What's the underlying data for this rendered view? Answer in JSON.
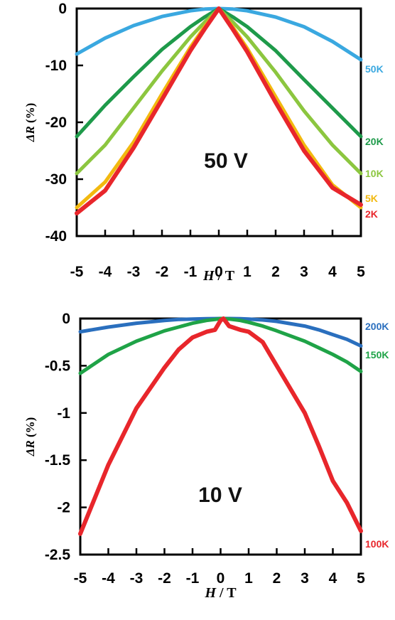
{
  "chart_data": [
    {
      "type": "line",
      "annotation": "50 V",
      "xlabel_italic": "H",
      "xlabel_rest": " / T",
      "ylabel_italic": "ΔR",
      "ylabel_rest": " (%)",
      "xlim": [
        -5,
        5
      ],
      "ylim": [
        -40,
        0
      ],
      "xticks": [
        "-5",
        "-4",
        "-3",
        "-2",
        "-1",
        "0",
        "1",
        "2",
        "3",
        "4",
        "5"
      ],
      "yticks": [
        "0",
        "-10",
        "-20",
        "-30",
        "-40"
      ],
      "x": [
        -5,
        -4,
        -3,
        -2,
        -1,
        -0.5,
        0,
        0.5,
        1,
        2,
        3,
        4,
        5
      ],
      "series": [
        {
          "name": "50K",
          "color": "#3aa8e0",
          "values": [
            -8,
            -5.2,
            -3,
            -1.4,
            -0.4,
            -0.1,
            0,
            -0.1,
            -0.4,
            -1.5,
            -3.2,
            -5.8,
            -9
          ]
        },
        {
          "name": "20K",
          "color": "#1e9a4a",
          "values": [
            -22.5,
            -17,
            -12,
            -7.2,
            -3.2,
            -1.5,
            0,
            -1.5,
            -3.2,
            -7.4,
            -12.5,
            -17.5,
            -22.5
          ]
        },
        {
          "name": "10K",
          "color": "#8cc63f",
          "values": [
            -29,
            -24,
            -17.5,
            -11,
            -5,
            -2.4,
            0,
            -2.4,
            -5,
            -11.2,
            -18,
            -24,
            -29
          ]
        },
        {
          "name": "5K",
          "color": "#f2b90f",
          "values": [
            -35,
            -30.5,
            -23.5,
            -15,
            -6.8,
            -3.2,
            0,
            -3.3,
            -7,
            -15.5,
            -24,
            -31,
            -35
          ]
        },
        {
          "name": "2K",
          "color": "#e8262b",
          "values": [
            -36,
            -32,
            -24.5,
            -16,
            -7.4,
            -3.6,
            0,
            -3.7,
            -7.6,
            -16.5,
            -25,
            -31.5,
            -34.5
          ]
        }
      ]
    },
    {
      "type": "line",
      "annotation": "10 V",
      "xlabel_italic": "H",
      "xlabel_rest": " / T",
      "ylabel_italic": "ΔR",
      "ylabel_rest": " (%)",
      "xlim": [
        -5,
        5
      ],
      "ylim": [
        -2.5,
        0
      ],
      "xticks": [
        "-5",
        "-4",
        "-3",
        "-2",
        "-1",
        "0",
        "1",
        "2",
        "3",
        "4",
        "5"
      ],
      "yticks": [
        "0",
        "-0.5",
        "-1",
        "-1.5",
        "-2",
        "-2.5"
      ],
      "x": [
        -5,
        -4,
        -3,
        -2,
        -1.5,
        -1,
        -0.5,
        -0.2,
        0,
        0.1,
        0.3,
        0.7,
        1,
        1.5,
        2,
        3,
        3.5,
        4,
        4.5,
        5
      ],
      "series": [
        {
          "name": "200K",
          "color": "#2a6fbe",
          "values": [
            -0.14,
            -0.09,
            -0.05,
            -0.02,
            -0.01,
            -0.005,
            -0.002,
            -0.001,
            0,
            0,
            0,
            -0.002,
            -0.005,
            -0.015,
            -0.03,
            -0.08,
            -0.12,
            -0.17,
            -0.22,
            -0.29
          ]
        },
        {
          "name": "150K",
          "color": "#1fa347",
          "values": [
            -0.58,
            -0.38,
            -0.24,
            -0.13,
            -0.09,
            -0.05,
            -0.02,
            -0.01,
            0,
            0,
            -0.005,
            -0.02,
            -0.04,
            -0.08,
            -0.13,
            -0.24,
            -0.31,
            -0.38,
            -0.46,
            -0.56
          ]
        },
        {
          "name": "100K",
          "color": "#e8262b",
          "values": [
            -2.28,
            -1.55,
            -0.95,
            -0.52,
            -0.33,
            -0.2,
            -0.14,
            -0.12,
            -0.02,
            0,
            -0.08,
            -0.12,
            -0.14,
            -0.25,
            -0.5,
            -1.0,
            -1.35,
            -1.72,
            -1.95,
            -2.25
          ]
        }
      ]
    }
  ]
}
